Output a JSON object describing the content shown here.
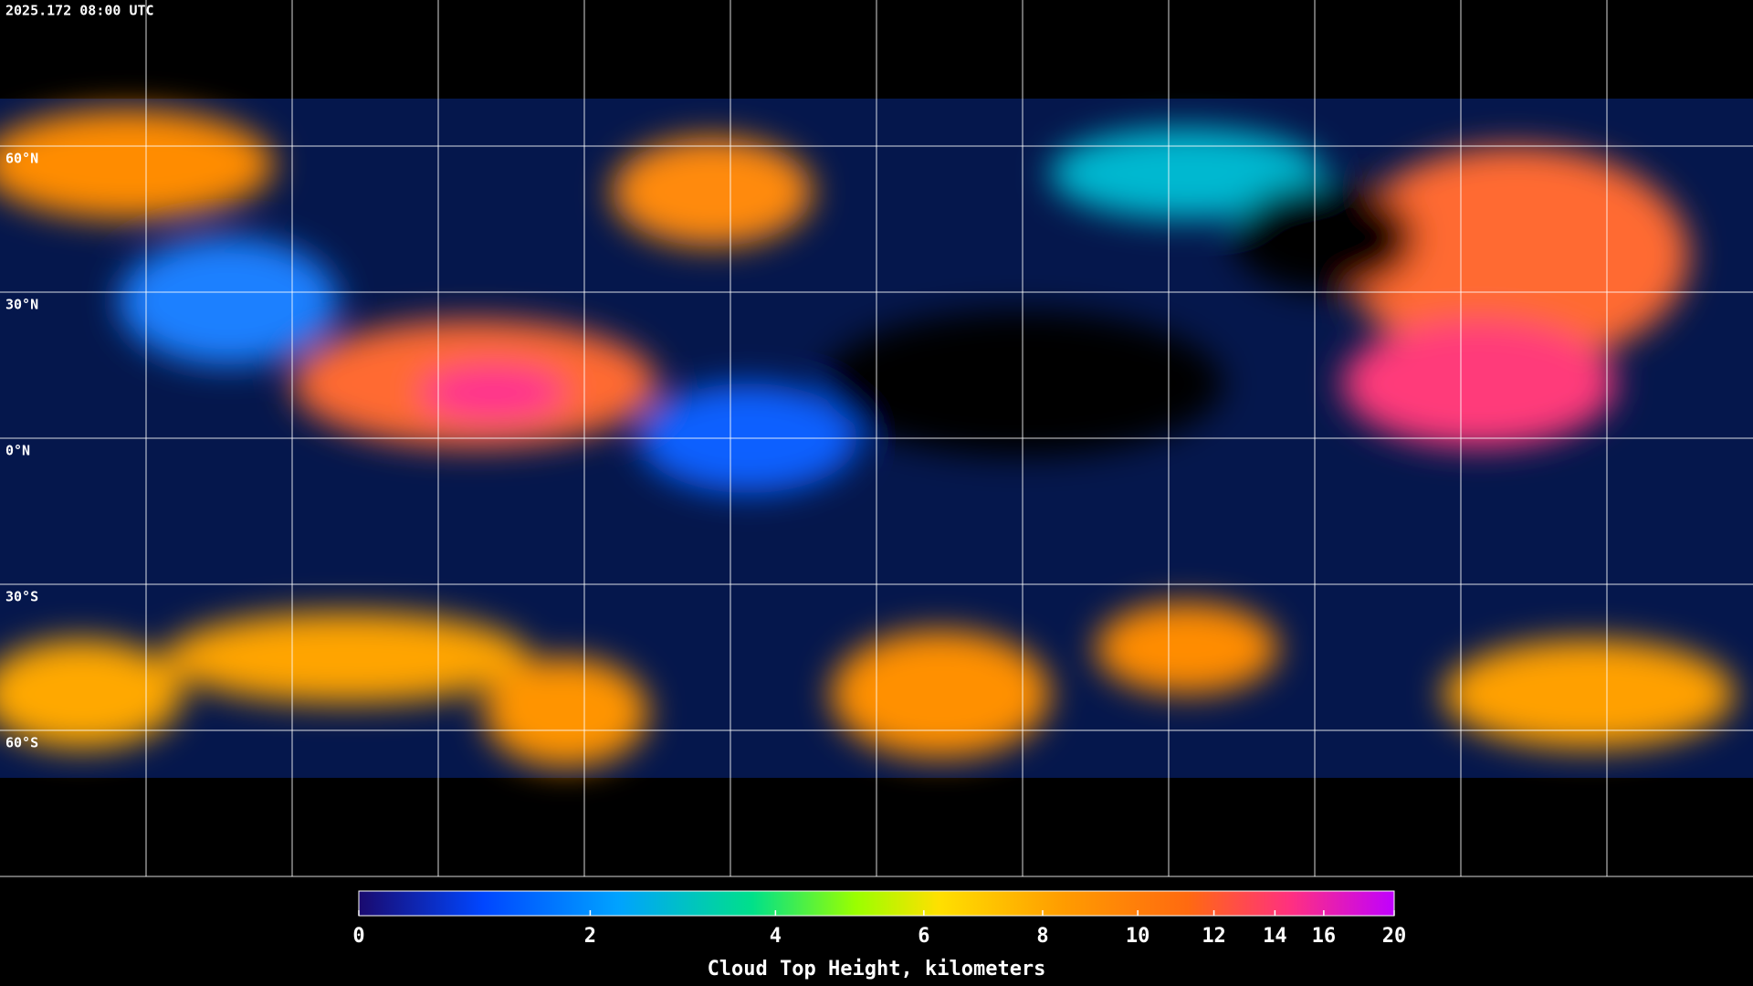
{
  "header": {
    "timestamp": "2025.172 08:00 UTC"
  },
  "map": {
    "lat_lines": [
      {
        "value": 60,
        "label": "60°N"
      },
      {
        "value": 30,
        "label": "30°N"
      },
      {
        "value": 0,
        "label": "0°N"
      },
      {
        "value": -30,
        "label": "30°S"
      },
      {
        "value": -60,
        "label": "60°S"
      }
    ]
  },
  "colorbar": {
    "label": "Cloud Top Height, kilometers",
    "range": [
      0,
      20
    ],
    "ticks": [
      0,
      2,
      4,
      6,
      8,
      10,
      12,
      14,
      16,
      20
    ]
  }
}
